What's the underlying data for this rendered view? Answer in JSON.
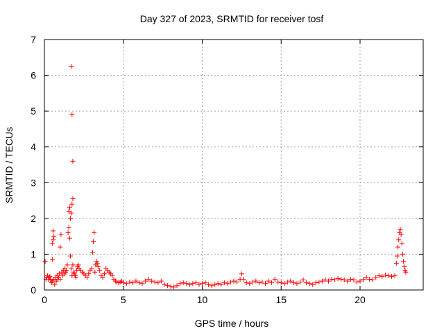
{
  "chart_data": {
    "type": "scatter",
    "title": "Day 327 of 2023, SRMTID for receiver tosf",
    "xlabel": "GPS time / hours",
    "ylabel": "SRMTID / TECUs",
    "xlim": [
      0,
      24
    ],
    "ylim": [
      0,
      7
    ],
    "x_ticks": [
      0,
      5,
      10,
      15,
      20
    ],
    "y_ticks": [
      0,
      1,
      2,
      3,
      4,
      5,
      6,
      7
    ],
    "grid": true,
    "marker": "+",
    "series": [
      {
        "color": "#ff0000",
        "points": [
          [
            0.05,
            0.8
          ],
          [
            0.1,
            0.3
          ],
          [
            0.15,
            0.35
          ],
          [
            0.2,
            0.4
          ],
          [
            0.25,
            0.3
          ],
          [
            0.3,
            0.35
          ],
          [
            0.35,
            0.38
          ],
          [
            0.4,
            0.28
          ],
          [
            0.45,
            0.2
          ],
          [
            0.5,
            0.25
          ],
          [
            0.5,
            0.85
          ],
          [
            0.5,
            1.3
          ],
          [
            0.55,
            1.65
          ],
          [
            0.55,
            1.4
          ],
          [
            0.6,
            1.5
          ],
          [
            0.6,
            0.3
          ],
          [
            0.65,
            0.15
          ],
          [
            0.7,
            0.35
          ],
          [
            0.75,
            0.25
          ],
          [
            0.8,
            0.4
          ],
          [
            0.85,
            0.3
          ],
          [
            0.9,
            0.35
          ],
          [
            0.95,
            0.45
          ],
          [
            1.0,
            0.3
          ],
          [
            1.0,
            1.2
          ],
          [
            1.05,
            1.55
          ],
          [
            1.1,
            0.5
          ],
          [
            1.15,
            0.4
          ],
          [
            1.2,
            0.55
          ],
          [
            1.25,
            0.45
          ],
          [
            1.3,
            0.6
          ],
          [
            1.35,
            0.5
          ],
          [
            1.4,
            0.55
          ],
          [
            1.45,
            0.7
          ],
          [
            1.5,
            1.6
          ],
          [
            1.55,
            2.2
          ],
          [
            1.55,
            1.75
          ],
          [
            1.6,
            2.3
          ],
          [
            1.6,
            1.45
          ],
          [
            1.65,
            2.0
          ],
          [
            1.65,
            0.95
          ],
          [
            1.7,
            6.25
          ],
          [
            1.7,
            2.15
          ],
          [
            1.7,
            0.6
          ],
          [
            1.75,
            4.9
          ],
          [
            1.75,
            2.4
          ],
          [
            1.75,
            0.4
          ],
          [
            1.8,
            3.6
          ],
          [
            1.8,
            2.55
          ],
          [
            1.8,
            0.7
          ],
          [
            1.85,
            0.5
          ],
          [
            1.9,
            0.45
          ],
          [
            1.95,
            0.4
          ],
          [
            2.0,
            0.35
          ],
          [
            2.05,
            0.55
          ],
          [
            2.1,
            0.65
          ],
          [
            2.15,
            0.7
          ],
          [
            2.2,
            0.6
          ],
          [
            2.3,
            0.55
          ],
          [
            2.4,
            0.5
          ],
          [
            2.5,
            0.45
          ],
          [
            2.6,
            0.4
          ],
          [
            2.7,
            0.35
          ],
          [
            2.8,
            0.45
          ],
          [
            2.9,
            0.55
          ],
          [
            3.0,
            0.6
          ],
          [
            3.05,
            1.05
          ],
          [
            3.1,
            1.35
          ],
          [
            3.15,
            1.6
          ],
          [
            3.2,
            0.5
          ],
          [
            3.25,
            0.7
          ],
          [
            3.3,
            0.8
          ],
          [
            3.35,
            0.75
          ],
          [
            3.4,
            0.65
          ],
          [
            3.5,
            0.55
          ],
          [
            3.6,
            0.4
          ],
          [
            3.7,
            0.35
          ],
          [
            3.8,
            0.45
          ],
          [
            3.9,
            0.6
          ],
          [
            4.0,
            0.55
          ],
          [
            4.1,
            0.5
          ],
          [
            4.2,
            0.45
          ],
          [
            4.3,
            0.4
          ],
          [
            4.4,
            0.3
          ],
          [
            4.5,
            0.25
          ],
          [
            4.6,
            0.22
          ],
          [
            4.7,
            0.2
          ],
          [
            4.8,
            0.22
          ],
          [
            4.9,
            0.25
          ],
          [
            5.0,
            0.2
          ],
          [
            5.2,
            0.18
          ],
          [
            5.4,
            0.22
          ],
          [
            5.6,
            0.2
          ],
          [
            5.8,
            0.25
          ],
          [
            6.0,
            0.2
          ],
          [
            6.2,
            0.18
          ],
          [
            6.4,
            0.25
          ],
          [
            6.6,
            0.3
          ],
          [
            6.8,
            0.25
          ],
          [
            7.0,
            0.22
          ],
          [
            7.2,
            0.2
          ],
          [
            7.4,
            0.25
          ],
          [
            7.6,
            0.15
          ],
          [
            7.8,
            0.12
          ],
          [
            8.0,
            0.1
          ],
          [
            8.2,
            0.08
          ],
          [
            8.4,
            0.12
          ],
          [
            8.6,
            0.18
          ],
          [
            8.8,
            0.2
          ],
          [
            9.0,
            0.18
          ],
          [
            9.2,
            0.15
          ],
          [
            9.4,
            0.18
          ],
          [
            9.6,
            0.2
          ],
          [
            9.8,
            0.15
          ],
          [
            10.0,
            0.18
          ],
          [
            10.2,
            0.2
          ],
          [
            10.4,
            0.15
          ],
          [
            10.6,
            0.12
          ],
          [
            10.8,
            0.15
          ],
          [
            11.0,
            0.18
          ],
          [
            11.2,
            0.15
          ],
          [
            11.4,
            0.2
          ],
          [
            11.6,
            0.18
          ],
          [
            11.8,
            0.22
          ],
          [
            12.0,
            0.25
          ],
          [
            12.2,
            0.22
          ],
          [
            12.4,
            0.3
          ],
          [
            12.5,
            0.45
          ],
          [
            12.6,
            0.3
          ],
          [
            12.8,
            0.2
          ],
          [
            13.0,
            0.18
          ],
          [
            13.2,
            0.22
          ],
          [
            13.4,
            0.25
          ],
          [
            13.6,
            0.2
          ],
          [
            13.8,
            0.22
          ],
          [
            14.0,
            0.18
          ],
          [
            14.2,
            0.25
          ],
          [
            14.4,
            0.2
          ],
          [
            14.6,
            0.3
          ],
          [
            14.8,
            0.22
          ],
          [
            15.0,
            0.2
          ],
          [
            15.2,
            0.18
          ],
          [
            15.4,
            0.22
          ],
          [
            15.6,
            0.25
          ],
          [
            15.8,
            0.2
          ],
          [
            16.0,
            0.18
          ],
          [
            16.2,
            0.22
          ],
          [
            16.4,
            0.28
          ],
          [
            16.6,
            0.2
          ],
          [
            16.8,
            0.18
          ],
          [
            17.0,
            0.15
          ],
          [
            17.2,
            0.2
          ],
          [
            17.4,
            0.22
          ],
          [
            17.6,
            0.25
          ],
          [
            17.8,
            0.28
          ],
          [
            18.0,
            0.25
          ],
          [
            18.2,
            0.3
          ],
          [
            18.4,
            0.28
          ],
          [
            18.6,
            0.32
          ],
          [
            18.8,
            0.3
          ],
          [
            19.0,
            0.28
          ],
          [
            19.2,
            0.25
          ],
          [
            19.4,
            0.3
          ],
          [
            19.6,
            0.28
          ],
          [
            19.8,
            0.22
          ],
          [
            20.0,
            0.25
          ],
          [
            20.2,
            0.3
          ],
          [
            20.4,
            0.35
          ],
          [
            20.6,
            0.3
          ],
          [
            20.8,
            0.28
          ],
          [
            21.0,
            0.35
          ],
          [
            21.2,
            0.4
          ],
          [
            21.4,
            0.38
          ],
          [
            21.6,
            0.42
          ],
          [
            21.8,
            0.4
          ],
          [
            22.0,
            0.38
          ],
          [
            22.2,
            0.4
          ],
          [
            22.3,
            0.75
          ],
          [
            22.35,
            0.95
          ],
          [
            22.4,
            1.2
          ],
          [
            22.45,
            1.4
          ],
          [
            22.5,
            1.6
          ],
          [
            22.55,
            1.7
          ],
          [
            22.6,
            1.55
          ],
          [
            22.65,
            1.3
          ],
          [
            22.7,
            1.0
          ],
          [
            22.75,
            0.8
          ],
          [
            22.8,
            0.65
          ],
          [
            22.85,
            0.55
          ],
          [
            22.9,
            0.5
          ]
        ]
      }
    ]
  }
}
